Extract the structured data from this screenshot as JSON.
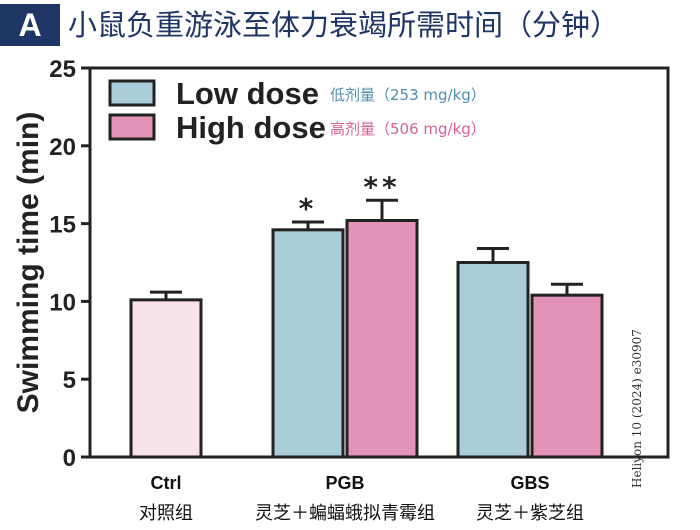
{
  "header": {
    "panel_label": "A",
    "title": "小鼠负重游泳至体力衰竭所需时间（分钟）"
  },
  "credit": "Heliyon 10 (2024) e30907",
  "colors": {
    "header": "#1f3566",
    "low_dose": "#a9ccd8",
    "high_dose": "#e293b6",
    "control": "#f7e1ea",
    "legend_low_text": "#4f8fb0",
    "legend_high_text": "#d7609a"
  },
  "chart_data": {
    "type": "bar",
    "ylabel": "Swimming time (min)",
    "ylim": [
      0,
      25
    ],
    "yticks": [
      0,
      5,
      10,
      15,
      20,
      25
    ],
    "grid": false,
    "legend_position": "top-left",
    "legend": [
      {
        "key": "low",
        "label": "Low dose",
        "sublabel": "低剂量（253 mg/kg）"
      },
      {
        "key": "high",
        "label": "High dose",
        "sublabel": "高剂量（506 mg/kg）"
      }
    ],
    "groups": [
      {
        "label": "Ctrl",
        "sublabel": "对照组",
        "bars": [
          {
            "series": "control",
            "value": 10.1,
            "error": 0.5,
            "significance": ""
          }
        ]
      },
      {
        "label": "PGB",
        "sublabel": "灵芝＋蝙蝠蛾拟青霉组",
        "bars": [
          {
            "series": "low",
            "value": 14.6,
            "error": 0.5,
            "significance": "*"
          },
          {
            "series": "high",
            "value": 15.2,
            "error": 1.3,
            "significance": "**"
          }
        ]
      },
      {
        "label": "GBS",
        "sublabel": "灵芝＋紫芝组",
        "bars": [
          {
            "series": "low",
            "value": 12.5,
            "error": 0.9,
            "significance": ""
          },
          {
            "series": "high",
            "value": 10.4,
            "error": 0.7,
            "significance": ""
          }
        ]
      }
    ]
  }
}
